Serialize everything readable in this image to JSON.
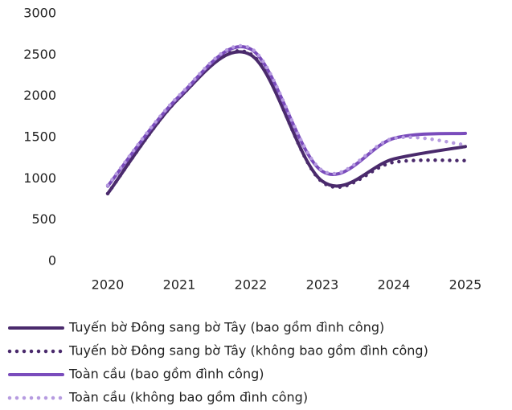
{
  "chart_data": {
    "type": "line",
    "categories": [
      "2020",
      "2021",
      "2022",
      "2023",
      "2024",
      "2025"
    ],
    "series": [
      {
        "name": "Tuyến bờ Đông sang bờ Tây (bao gồm đình công)",
        "color": "#4a2a6c",
        "dash": false,
        "values": [
          820,
          1980,
          2500,
          970,
          1240,
          1390
        ]
      },
      {
        "name": "Tuyến bờ Đông sang bờ Tây (không bao gồm đình công)",
        "color": "#4a2a6c",
        "dash": true,
        "values": [
          820,
          1980,
          2510,
          960,
          1200,
          1220
        ]
      },
      {
        "name": "Toàn cầu (bao gồm đình công)",
        "color": "#7a4cbc",
        "dash": false,
        "values": [
          910,
          2000,
          2570,
          1090,
          1490,
          1550
        ]
      },
      {
        "name": "Toàn cầu (không bao gồm đình công)",
        "color": "#b69be0",
        "dash": true,
        "values": [
          920,
          2010,
          2580,
          1100,
          1490,
          1410
        ]
      }
    ],
    "ylim": [
      0,
      3000
    ],
    "yticks": [
      0,
      500,
      1000,
      1500,
      2000,
      2500,
      3000
    ],
    "grid": false
  }
}
